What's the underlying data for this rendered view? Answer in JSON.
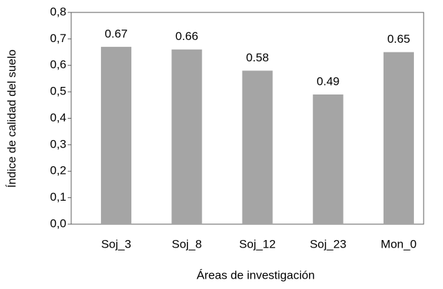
{
  "chart_data": {
    "type": "bar",
    "x_label": "Áreas de investigación",
    "y_label": "Índice de calidad del suelo",
    "categories": [
      "Soj_3",
      "Soj_8",
      "Soj_12",
      "Soj_23",
      "Mon_0"
    ],
    "values": [
      0.67,
      0.66,
      0.58,
      0.49,
      0.65
    ],
    "color": "#a5a5a5",
    "ylim": [
      0,
      0.8
    ],
    "yticks": [
      {
        "value": 0,
        "label": "0,0"
      },
      {
        "value": 0.1,
        "label": "0,1"
      },
      {
        "value": 0.2,
        "label": "0,2"
      },
      {
        "value": 0.3,
        "label": "0,3"
      },
      {
        "value": 0.4,
        "label": "0,4"
      },
      {
        "value": 0.5,
        "label": "0,5"
      },
      {
        "value": 0.6,
        "label": "0,6"
      },
      {
        "value": 0.7,
        "label": "0,7"
      },
      {
        "value": 0.8,
        "label": "0,8"
      }
    ]
  }
}
